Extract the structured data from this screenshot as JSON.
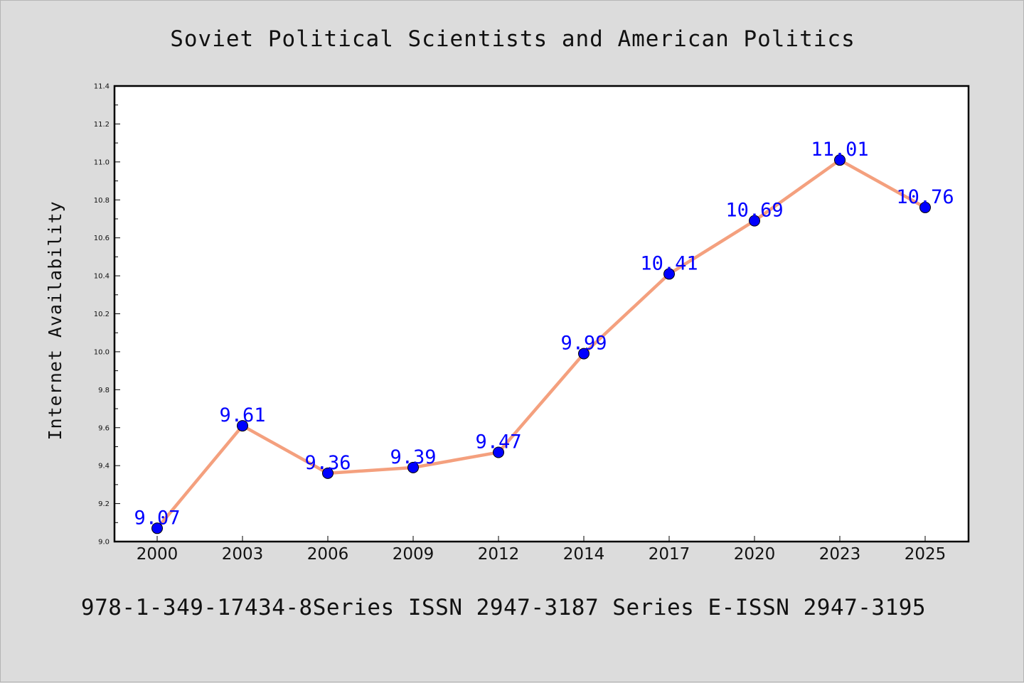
{
  "chart_data": {
    "type": "line",
    "title": "Soviet Political Scientists and American Politics",
    "xlabel": "",
    "ylabel": "Internet Availability",
    "footer": "978-1-349-17434-8Series ISSN 2947-3187 Series E-ISSN 2947-3195",
    "categories": [
      "2000",
      "2003",
      "2006",
      "2009",
      "2012",
      "2014",
      "2017",
      "2020",
      "2023",
      "2025"
    ],
    "series": [
      {
        "values": [
          9.07,
          9.61,
          9.36,
          9.39,
          9.47,
          9.99,
          10.41,
          10.69,
          11.01,
          10.76
        ]
      }
    ],
    "data_labels": [
      "9.07",
      "9.61",
      "9.36",
      "9.39",
      "9.47",
      "9.99",
      "10.41",
      "10.69",
      "11.01",
      "10.76"
    ],
    "ylim": [
      9.0,
      11.4
    ],
    "yticks": [
      "9.0",
      "9.2",
      "9.4",
      "9.6",
      "9.8",
      "10.0",
      "10.2",
      "10.4",
      "10.6",
      "10.8",
      "11.0",
      "11.2",
      "11.4"
    ],
    "grid": false,
    "colors": {
      "line": "#f4a07e",
      "marker": "#0000ff",
      "labels": "#0000ff",
      "plot_bg": "#ffffff",
      "page_bg": "#dcdcdc"
    }
  }
}
